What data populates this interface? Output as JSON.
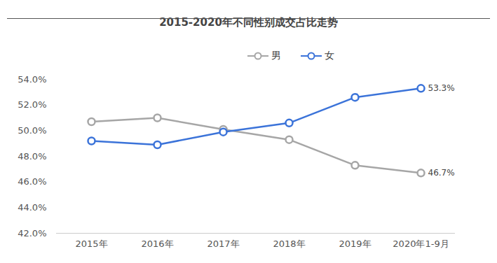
{
  "chart_data": {
    "type": "line",
    "title": "2015-2020年不同性别成交占比走势",
    "categories": [
      "2015年",
      "2016年",
      "2017年",
      "2018年",
      "2019年",
      "2020年1-9月"
    ],
    "series": [
      {
        "name": "男",
        "color": "#a6a6a6",
        "values": [
          50.7,
          51.0,
          50.1,
          49.3,
          47.3,
          46.7
        ],
        "value_labels": [
          null,
          null,
          null,
          null,
          null,
          "46.7%"
        ]
      },
      {
        "name": "女",
        "color": "#3b73d9",
        "values": [
          49.2,
          48.9,
          49.9,
          50.6,
          52.6,
          53.3
        ],
        "value_labels": [
          null,
          null,
          null,
          null,
          null,
          "53.3%"
        ]
      }
    ],
    "ylim": [
      42,
      54
    ],
    "yticks": [
      {
        "value": 42,
        "label": "42.0%"
      },
      {
        "value": 44,
        "label": "44.0%"
      },
      {
        "value": 46,
        "label": "46.0%"
      },
      {
        "value": 48,
        "label": "48.0%"
      },
      {
        "value": 50,
        "label": "50.0%"
      },
      {
        "value": 52,
        "label": "52.0%"
      },
      {
        "value": 54,
        "label": "54.0%"
      }
    ],
    "grid": false,
    "legend": "top",
    "marker": "circle",
    "data_labels": true
  }
}
